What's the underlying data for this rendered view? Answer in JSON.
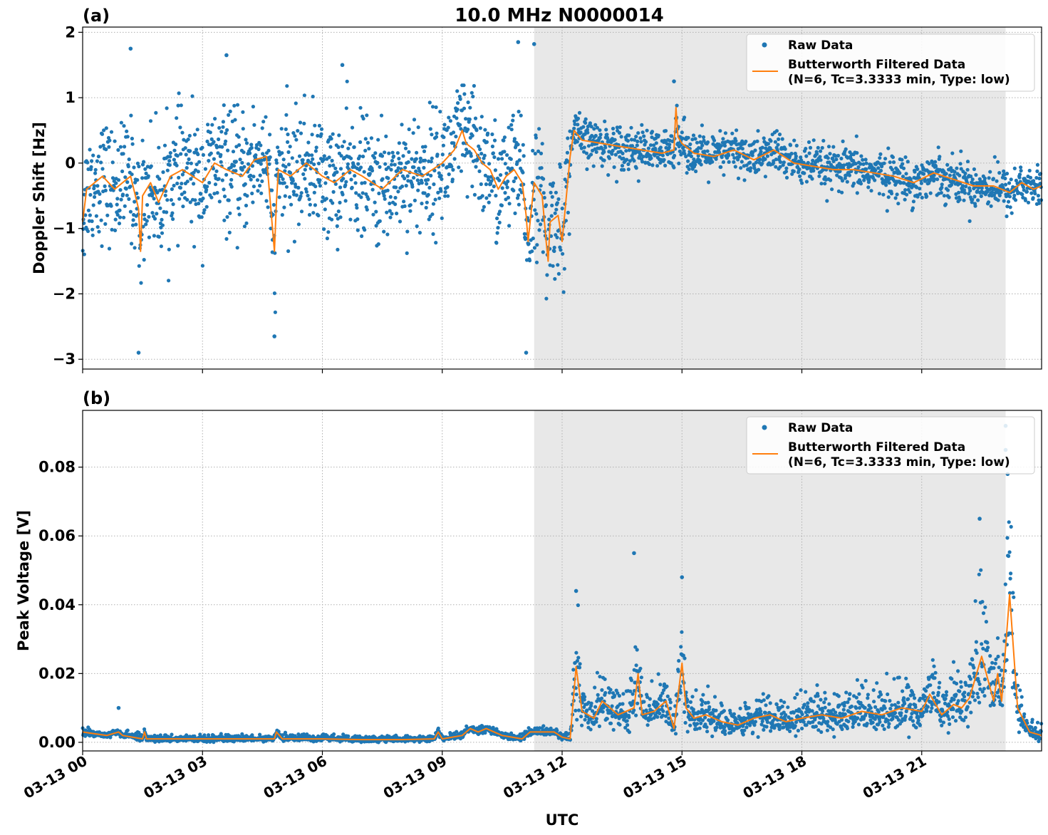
{
  "figure": {
    "title": "10.0 MHz N0000014",
    "xlabel": "UTC"
  },
  "colors": {
    "raw": "#1f77b4",
    "filtered": "#ff7f0e",
    "shade": "#e8e8e8",
    "grid": "#b0b0b0"
  },
  "legend": {
    "raw_label": "Raw Data",
    "filtered_label_line1": "Butterworth Filtered Data",
    "filtered_label_line2": "(N=6, Tc=3.3333 min, Type: low)",
    "placement": "top-right"
  },
  "chart_data": [
    {
      "type": "scatter",
      "panel_label": "(a)",
      "title": "10.0 MHz N0000014",
      "ylabel": "Doppler Shift [Hz]",
      "xlabel": "",
      "x_unit": "hours UTC on 03-13",
      "xlim": [
        0,
        24
      ],
      "ylim": [
        -3.15,
        2.08
      ],
      "yticks": [
        -3,
        -2,
        -1,
        0,
        1,
        2
      ],
      "ytick_labels": [
        "−3",
        "−2",
        "−1",
        "0",
        "1",
        "2"
      ],
      "xticks": [
        0,
        3,
        6,
        9,
        12,
        15,
        18,
        21
      ],
      "grid": true,
      "legend": "top-right",
      "shaded_span": [
        11.3,
        23.1
      ],
      "series": [
        {
          "name": "Butterworth Filtered Data",
          "style": "line",
          "x": [
            0,
            0.1,
            0.3,
            0.5,
            0.8,
            1.0,
            1.2,
            1.4,
            1.45,
            1.5,
            1.7,
            1.9,
            2.2,
            2.5,
            3.0,
            3.3,
            3.6,
            4.0,
            4.3,
            4.6,
            4.8,
            4.85,
            4.9,
            5.2,
            5.6,
            6.0,
            6.3,
            6.7,
            7.0,
            7.5,
            8.0,
            8.5,
            9.0,
            9.3,
            9.5,
            9.6,
            9.8,
            10.0,
            10.2,
            10.4,
            10.6,
            10.8,
            11.0,
            11.1,
            11.15,
            11.3,
            11.5,
            11.6,
            11.65,
            11.7,
            11.9,
            12.0,
            12.2,
            12.3,
            12.5,
            13.0,
            13.5,
            14.0,
            14.5,
            14.8,
            14.85,
            14.9,
            15.0,
            15.3,
            15.8,
            16.3,
            16.8,
            17.3,
            17.8,
            18.3,
            18.8,
            19.3,
            19.8,
            20.3,
            20.8,
            21.3,
            21.8,
            22.3,
            22.8,
            23.2,
            23.5,
            23.8,
            24.0
          ],
          "y": [
            -0.9,
            -0.4,
            -0.3,
            -0.2,
            -0.4,
            -0.3,
            -0.2,
            -0.7,
            -1.35,
            -0.5,
            -0.3,
            -0.6,
            -0.2,
            -0.1,
            -0.3,
            0.0,
            -0.1,
            -0.2,
            0.05,
            0.1,
            -1.35,
            -0.6,
            -0.1,
            -0.2,
            0.0,
            -0.2,
            -0.3,
            -0.1,
            -0.2,
            -0.4,
            -0.1,
            -0.2,
            0.0,
            0.2,
            0.5,
            0.3,
            0.2,
            0.0,
            -0.1,
            -0.4,
            -0.2,
            -0.1,
            -0.3,
            -0.8,
            -1.2,
            -0.3,
            -0.5,
            -1.2,
            -1.5,
            -0.9,
            -0.8,
            -1.2,
            0.1,
            0.5,
            0.35,
            0.3,
            0.25,
            0.2,
            0.15,
            0.2,
            0.85,
            0.4,
            0.3,
            0.15,
            0.1,
            0.2,
            0.05,
            0.2,
            0.0,
            -0.05,
            -0.1,
            -0.1,
            -0.15,
            -0.2,
            -0.3,
            -0.15,
            -0.25,
            -0.35,
            -0.35,
            -0.45,
            -0.3,
            -0.4,
            -0.35
          ]
        },
        {
          "name": "Raw Data",
          "style": "points",
          "scatter_around_filtered": true,
          "spread_before_12h": 0.8,
          "spread_after_12h": 0.3,
          "extreme_points": [
            {
              "x": 1.4,
              "y": -2.9
            },
            {
              "x": 1.2,
              "y": 1.75
            },
            {
              "x": 4.8,
              "y": -2.65
            },
            {
              "x": 10.9,
              "y": 1.85
            },
            {
              "x": 11.3,
              "y": 1.82
            },
            {
              "x": 11.1,
              "y": -2.9
            },
            {
              "x": 14.8,
              "y": 1.25
            },
            {
              "x": 3.6,
              "y": 1.65
            },
            {
              "x": 6.5,
              "y": 1.5
            }
          ]
        }
      ]
    },
    {
      "type": "scatter",
      "panel_label": "(b)",
      "ylabel": "Peak Voltage [V]",
      "xlabel": "UTC",
      "x_unit": "hours UTC on 03-13",
      "xlim": [
        0,
        24
      ],
      "ylim": [
        -0.0025,
        0.0965
      ],
      "yticks": [
        0.0,
        0.02,
        0.04,
        0.06,
        0.08
      ],
      "ytick_labels": [
        "0.00",
        "0.02",
        "0.04",
        "0.06",
        "0.08"
      ],
      "xticks": [
        0,
        3,
        6,
        9,
        12,
        15,
        18,
        21
      ],
      "xtick_labels": [
        "03-13 00",
        "03-13 03",
        "03-13 06",
        "03-13 09",
        "03-13 12",
        "03-13 15",
        "03-13 18",
        "03-13 21"
      ],
      "grid": true,
      "legend": "top-right",
      "shaded_span": [
        11.3,
        23.1
      ],
      "series": [
        {
          "name": "Butterworth Filtered Data",
          "style": "line",
          "x": [
            0,
            0.3,
            0.6,
            0.9,
            1.0,
            1.5,
            1.55,
            1.6,
            2.0,
            2.5,
            3.0,
            4.0,
            4.8,
            4.85,
            5.0,
            6.0,
            7.0,
            8.0,
            8.8,
            8.9,
            9.0,
            9.5,
            9.7,
            9.9,
            10.1,
            10.5,
            11.0,
            11.2,
            11.4,
            11.6,
            11.8,
            12.0,
            12.2,
            12.35,
            12.5,
            12.8,
            13.0,
            13.4,
            13.8,
            13.9,
            14.0,
            14.3,
            14.6,
            14.8,
            15.0,
            15.1,
            15.3,
            15.6,
            16.0,
            16.4,
            16.8,
            17.2,
            17.6,
            18.0,
            18.5,
            19.0,
            19.5,
            20.0,
            20.5,
            21.0,
            21.2,
            21.5,
            21.8,
            22.0,
            22.2,
            22.5,
            22.8,
            22.9,
            23.0,
            23.2,
            23.4,
            23.7,
            24.0
          ],
          "y": [
            0.003,
            0.0025,
            0.002,
            0.003,
            0.002,
            0.001,
            0.003,
            0.001,
            0.001,
            0.001,
            0.001,
            0.001,
            0.001,
            0.003,
            0.001,
            0.001,
            0.0008,
            0.0008,
            0.001,
            0.003,
            0.001,
            0.002,
            0.004,
            0.003,
            0.004,
            0.002,
            0.001,
            0.003,
            0.003,
            0.003,
            0.003,
            0.0015,
            0.001,
            0.022,
            0.009,
            0.007,
            0.012,
            0.008,
            0.01,
            0.02,
            0.008,
            0.009,
            0.012,
            0.004,
            0.023,
            0.01,
            0.007,
            0.008,
            0.006,
            0.005,
            0.007,
            0.008,
            0.006,
            0.007,
            0.008,
            0.007,
            0.009,
            0.008,
            0.01,
            0.009,
            0.014,
            0.008,
            0.011,
            0.01,
            0.013,
            0.025,
            0.012,
            0.02,
            0.012,
            0.043,
            0.01,
            0.003,
            0.002
          ]
        },
        {
          "name": "Raw Data",
          "style": "points",
          "scatter_around_filtered": true,
          "extreme_points": [
            {
              "x": 12.35,
              "y": 0.044
            },
            {
              "x": 13.8,
              "y": 0.055
            },
            {
              "x": 15.0,
              "y": 0.048
            },
            {
              "x": 22.45,
              "y": 0.065
            },
            {
              "x": 23.1,
              "y": 0.092
            },
            {
              "x": 23.1,
              "y": 0.085
            },
            {
              "x": 23.15,
              "y": 0.078
            },
            {
              "x": 0.9,
              "y": 0.01
            }
          ]
        }
      ]
    }
  ]
}
